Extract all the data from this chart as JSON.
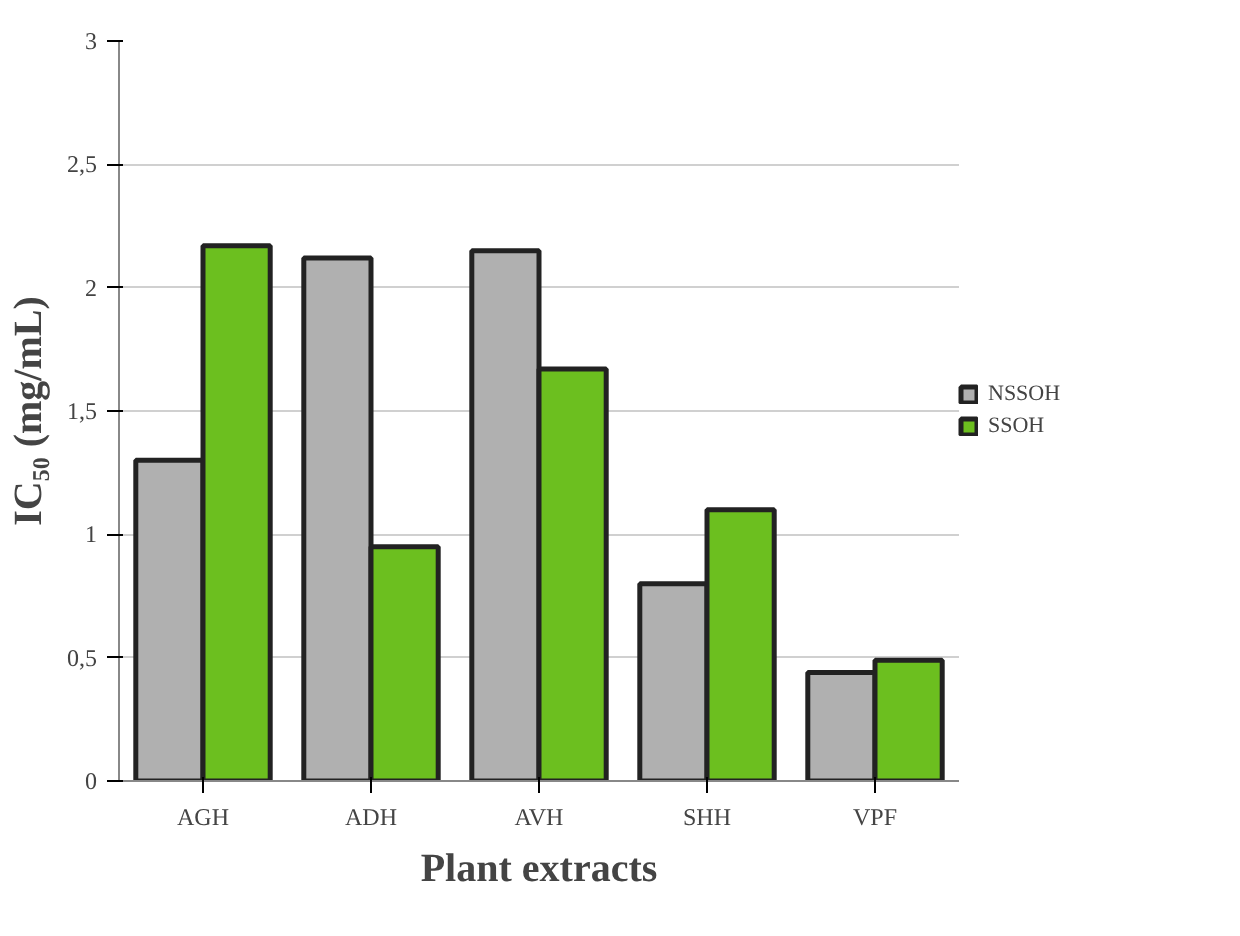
{
  "chart_data": {
    "type": "bar",
    "xlabel": "Plant extracts",
    "ylabel": "IC₅₀ (mg/mL)",
    "categories": [
      "AGH",
      "ADH",
      "AVH",
      "SHH",
      "VPF"
    ],
    "series": [
      {
        "name": "NSSOH",
        "color": "#b0b0b0",
        "values": [
          1.3,
          2.12,
          2.15,
          0.8,
          0.44
        ]
      },
      {
        "name": "SSOH",
        "color": "#6cbf1f",
        "values": [
          2.17,
          0.95,
          1.67,
          1.1,
          0.49
        ]
      }
    ],
    "ylim": [
      0,
      3
    ],
    "yticks": [
      0,
      {
        "value": 0.5,
        "label": "0,5"
      },
      1,
      {
        "value": 1.5,
        "label": "1,5"
      },
      2,
      {
        "value": 2.5,
        "label": "2,5"
      },
      3
    ],
    "grid": "y",
    "legend": "right"
  }
}
